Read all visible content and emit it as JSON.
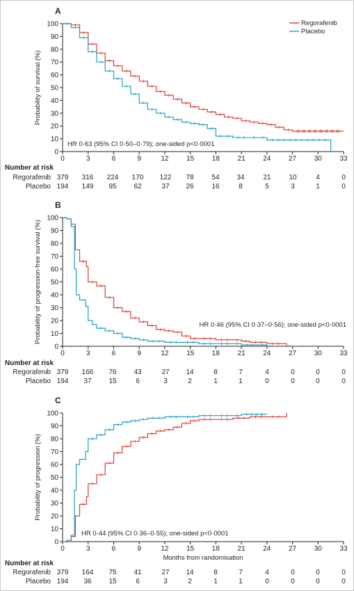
{
  "colors": {
    "regorafenib": "#e03a2f",
    "placebo": "#1e9ec9"
  },
  "legend": [
    {
      "name": "Regorafenib",
      "color": "#e03a2f"
    },
    {
      "name": "Placebo",
      "color": "#1e9ec9"
    }
  ],
  "shared_xlabel": "Months from randomisation",
  "risk_table_title": "Number at risk",
  "chart_data": [
    {
      "type": "line",
      "panel": "A",
      "ylabel": "Probability of survival (%)",
      "xlabel": "",
      "xlim": [
        0,
        33
      ],
      "ylim": [
        0,
        100
      ],
      "x_ticks": [
        0,
        3,
        6,
        9,
        12,
        15,
        18,
        21,
        24,
        27,
        30,
        33
      ],
      "y_ticks": [
        0,
        10,
        20,
        30,
        40,
        50,
        60,
        70,
        80,
        90,
        100
      ],
      "annotation": "HR 0·63 (95% CI 0·50–0·79); one-sided p<0·0001",
      "series": [
        {
          "name": "Regorafenib",
          "color": "#e03a2f",
          "points": [
            [
              0,
              100
            ],
            [
              1,
              99
            ],
            [
              2,
              93
            ],
            [
              3,
              84
            ],
            [
              4,
              77
            ],
            [
              5,
              71
            ],
            [
              6,
              67
            ],
            [
              7,
              63
            ],
            [
              8,
              59
            ],
            [
              9,
              55
            ],
            [
              10,
              51
            ],
            [
              11,
              47
            ],
            [
              12,
              44
            ],
            [
              13,
              41
            ],
            [
              14,
              38
            ],
            [
              15,
              35
            ],
            [
              16,
              33
            ],
            [
              17,
              31
            ],
            [
              18,
              29
            ],
            [
              19,
              27
            ],
            [
              20,
              26
            ],
            [
              21,
              24
            ],
            [
              22,
              23
            ],
            [
              23,
              22
            ],
            [
              24,
              21
            ],
            [
              25,
              19
            ],
            [
              26,
              17
            ],
            [
              27,
              16
            ],
            [
              33,
              16
            ]
          ]
        },
        {
          "name": "Placebo",
          "color": "#1e9ec9",
          "points": [
            [
              0,
              100
            ],
            [
              1,
              97
            ],
            [
              2,
              89
            ],
            [
              3,
              78
            ],
            [
              4,
              70
            ],
            [
              5,
              63
            ],
            [
              6,
              57
            ],
            [
              7,
              51
            ],
            [
              8,
              45
            ],
            [
              9,
              38
            ],
            [
              10,
              33
            ],
            [
              11,
              30
            ],
            [
              12,
              27
            ],
            [
              13,
              25
            ],
            [
              14,
              23
            ],
            [
              15,
              22
            ],
            [
              16,
              21
            ],
            [
              17,
              18
            ],
            [
              18,
              12
            ],
            [
              19,
              12
            ],
            [
              20,
              11
            ],
            [
              22,
              11
            ],
            [
              23,
              11
            ],
            [
              24,
              9
            ],
            [
              31.5,
              9
            ],
            [
              31.5,
              0
            ]
          ]
        }
      ]
    },
    {
      "type": "line",
      "panel": "B",
      "ylabel": "Probability of progression-free survival (%)",
      "xlabel": "",
      "xlim": [
        0,
        33
      ],
      "ylim": [
        0,
        100
      ],
      "x_ticks": [
        0,
        3,
        6,
        9,
        12,
        15,
        18,
        21,
        24,
        27,
        30,
        33
      ],
      "y_ticks": [
        0,
        10,
        20,
        30,
        40,
        50,
        60,
        70,
        80,
        90,
        100
      ],
      "annotation": "HR 0·46 (95% CI 0·37–0·56); one-sided p<0·0001",
      "series": [
        {
          "name": "Regorafenib",
          "color": "#e03a2f",
          "points": [
            [
              0,
              100
            ],
            [
              0.5,
              99
            ],
            [
              1,
              95
            ],
            [
              1.5,
              75
            ],
            [
              2,
              66
            ],
            [
              2.8,
              62
            ],
            [
              3,
              50
            ],
            [
              4,
              47
            ],
            [
              5,
              38
            ],
            [
              6,
              30
            ],
            [
              7,
              27
            ],
            [
              8,
              22
            ],
            [
              9,
              19
            ],
            [
              10,
              16
            ],
            [
              11,
              13
            ],
            [
              12,
              12
            ],
            [
              13,
              11
            ],
            [
              14,
              8
            ],
            [
              15,
              6
            ],
            [
              16,
              6
            ],
            [
              18,
              5
            ],
            [
              20,
              5
            ],
            [
              21,
              4
            ],
            [
              22,
              3
            ],
            [
              24,
              2
            ],
            [
              26,
              2
            ],
            [
              26.3,
              0
            ]
          ]
        },
        {
          "name": "Placebo",
          "color": "#1e9ec9",
          "points": [
            [
              0,
              100
            ],
            [
              0.5,
              99
            ],
            [
              1,
              93
            ],
            [
              1.4,
              60
            ],
            [
              1.6,
              40
            ],
            [
              2,
              36
            ],
            [
              2.7,
              31
            ],
            [
              3,
              20
            ],
            [
              3.5,
              17
            ],
            [
              4,
              14
            ],
            [
              5,
              12
            ],
            [
              6,
              10
            ],
            [
              7,
              7
            ],
            [
              8,
              6
            ],
            [
              9,
              5
            ],
            [
              10,
              4
            ],
            [
              12,
              3
            ],
            [
              14,
              3
            ],
            [
              16,
              2
            ],
            [
              18,
              2
            ],
            [
              20,
              2
            ],
            [
              21,
              1
            ],
            [
              23,
              1
            ],
            [
              24,
              0
            ]
          ]
        }
      ]
    },
    {
      "type": "line",
      "panel": "C",
      "ylabel": "Probability of progression (%)",
      "xlabel": "Months from randomisation",
      "xlim": [
        0,
        33
      ],
      "ylim": [
        0,
        100
      ],
      "x_ticks": [
        0,
        3,
        6,
        9,
        12,
        15,
        18,
        21,
        24,
        27,
        30,
        33
      ],
      "y_ticks": [
        0,
        10,
        20,
        30,
        40,
        50,
        60,
        70,
        80,
        90,
        100
      ],
      "annotation": "HR 0·44 (95% CI 0·36–0·55); one-sided p<0·0001",
      "series": [
        {
          "name": "Regorafenib",
          "color": "#e03a2f",
          "points": [
            [
              0,
              0
            ],
            [
              1,
              4
            ],
            [
              1.5,
              20
            ],
            [
              2,
              29
            ],
            [
              2.8,
              35
            ],
            [
              3,
              45
            ],
            [
              4,
              52
            ],
            [
              5,
              61
            ],
            [
              6,
              69
            ],
            [
              7,
              74
            ],
            [
              8,
              78
            ],
            [
              9,
              81
            ],
            [
              10,
              84
            ],
            [
              11,
              86
            ],
            [
              12,
              87
            ],
            [
              13,
              89
            ],
            [
              14,
              92
            ],
            [
              15,
              94
            ],
            [
              16,
              95
            ],
            [
              18,
              95
            ],
            [
              20,
              96
            ],
            [
              22,
              97
            ],
            [
              24,
              97
            ],
            [
              26,
              97
            ],
            [
              26.3,
              100
            ]
          ]
        },
        {
          "name": "Placebo",
          "color": "#1e9ec9",
          "points": [
            [
              0,
              0
            ],
            [
              0.5,
              1
            ],
            [
              1,
              5
            ],
            [
              1.4,
              40
            ],
            [
              1.6,
              60
            ],
            [
              2,
              64
            ],
            [
              2.7,
              70
            ],
            [
              3,
              80
            ],
            [
              4,
              83
            ],
            [
              5,
              87
            ],
            [
              6,
              91
            ],
            [
              7,
              93
            ],
            [
              8,
              94
            ],
            [
              9,
              95
            ],
            [
              10,
              96
            ],
            [
              12,
              97
            ],
            [
              14,
              97
            ],
            [
              16,
              98
            ],
            [
              18,
              98
            ],
            [
              20,
              98
            ],
            [
              21,
              99
            ],
            [
              24,
              99
            ]
          ]
        }
      ]
    }
  ],
  "risk_tables": [
    {
      "rows": [
        {
          "label": "Regorafenib",
          "values": [
            "379",
            "316",
            "224",
            "170",
            "122",
            "78",
            "54",
            "34",
            "21",
            "10",
            "4",
            "0"
          ]
        },
        {
          "label": "Placebo",
          "values": [
            "194",
            "149",
            "95",
            "62",
            "37",
            "26",
            "16",
            "8",
            "5",
            "3",
            "1",
            "0"
          ]
        }
      ]
    },
    {
      "rows": [
        {
          "label": "Regorafenib",
          "values": [
            "379",
            "166",
            "76",
            "43",
            "27",
            "14",
            "8",
            "7",
            "4",
            "0",
            "0",
            "0"
          ]
        },
        {
          "label": "Placebo",
          "values": [
            "194",
            "37",
            "15",
            "6",
            "3",
            "2",
            "1",
            "1",
            "0",
            "0",
            "0",
            "0"
          ]
        }
      ]
    },
    {
      "rows": [
        {
          "label": "Regorafenib",
          "values": [
            "379",
            "164",
            "75",
            "41",
            "27",
            "14",
            "8",
            "7",
            "4",
            "0",
            "0",
            "0"
          ]
        },
        {
          "label": "Placebo",
          "values": [
            "194",
            "36",
            "15",
            "6",
            "3",
            "2",
            "1",
            "1",
            "0",
            "0",
            "0",
            "0"
          ]
        }
      ]
    }
  ]
}
